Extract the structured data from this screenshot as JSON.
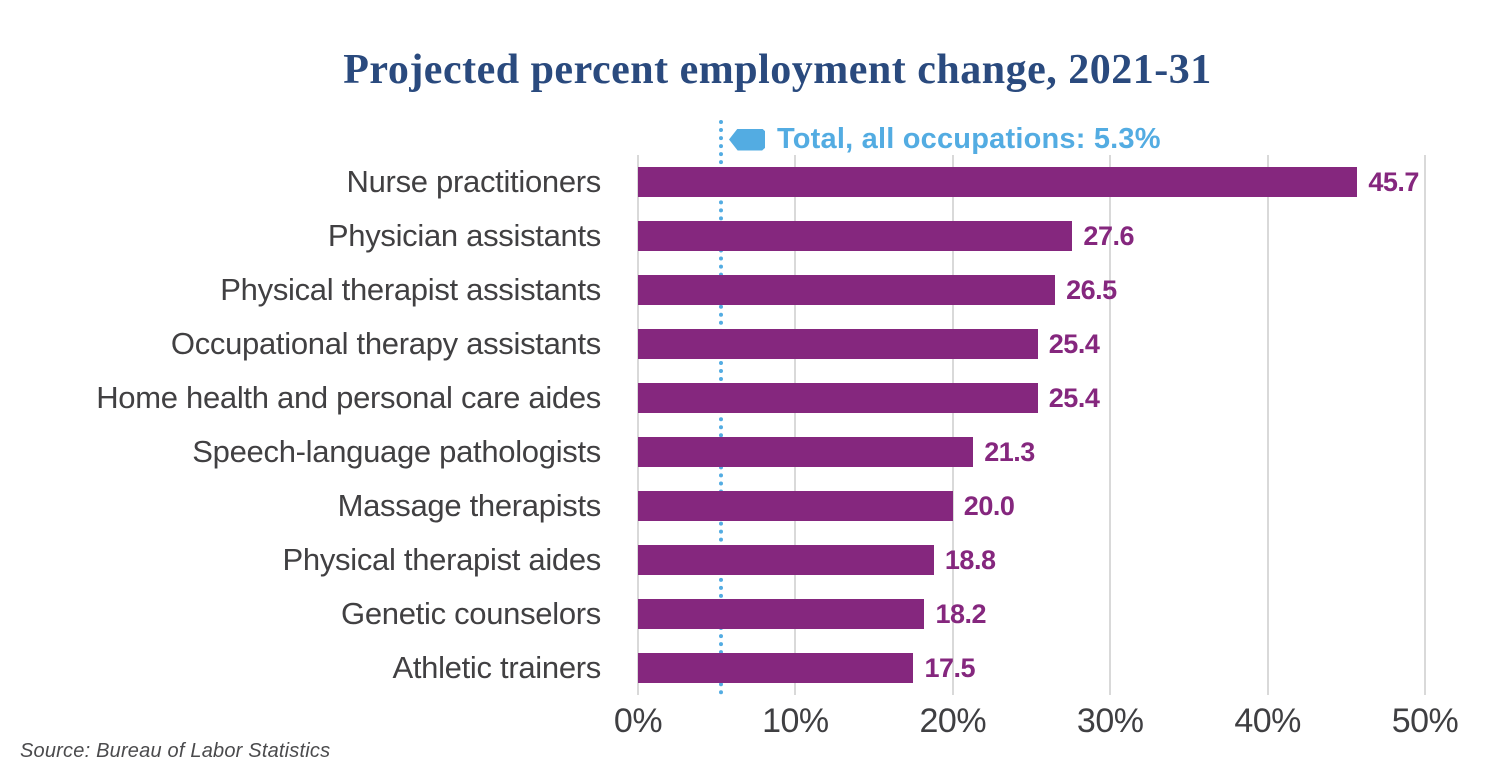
{
  "title": "Projected percent employment change, 2021-31",
  "source": "Source: Bureau of Labor Statistics",
  "colors": {
    "title_navy": "#2A4A7E",
    "bar_purple": "#85277E",
    "reference_blue": "#53ACE2",
    "gridline_gray": "#D9D9D9",
    "label_gray": "#414042"
  },
  "chart_data": {
    "type": "bar",
    "orientation": "horizontal",
    "title": "Projected percent employment change, 2021-31",
    "xlabel": "",
    "ylabel": "",
    "xlim": [
      0,
      50
    ],
    "grid": true,
    "x_ticks": [
      "0%",
      "10%",
      "20%",
      "30%",
      "40%",
      "50%"
    ],
    "x_tick_values": [
      0,
      10,
      20,
      30,
      40,
      50
    ],
    "categories": [
      "Nurse practitioners",
      "Physician assistants",
      "Physical therapist assistants",
      "Occupational therapy assistants",
      "Home health and personal care aides",
      "Speech-language pathologists",
      "Massage therapists",
      "Physical therapist aides",
      "Genetic counselors",
      "Athletic trainers"
    ],
    "values": [
      45.7,
      27.6,
      26.5,
      25.4,
      25.4,
      21.3,
      20.0,
      18.8,
      18.2,
      17.5
    ],
    "value_labels": [
      "45.7",
      "27.6",
      "26.5",
      "25.4",
      "25.4",
      "21.3",
      "20.0",
      "18.8",
      "18.2",
      "17.5"
    ],
    "reference_line": {
      "label": "Total, all occupations: 5.3%",
      "value": 5.3
    },
    "legend_position": "top"
  }
}
